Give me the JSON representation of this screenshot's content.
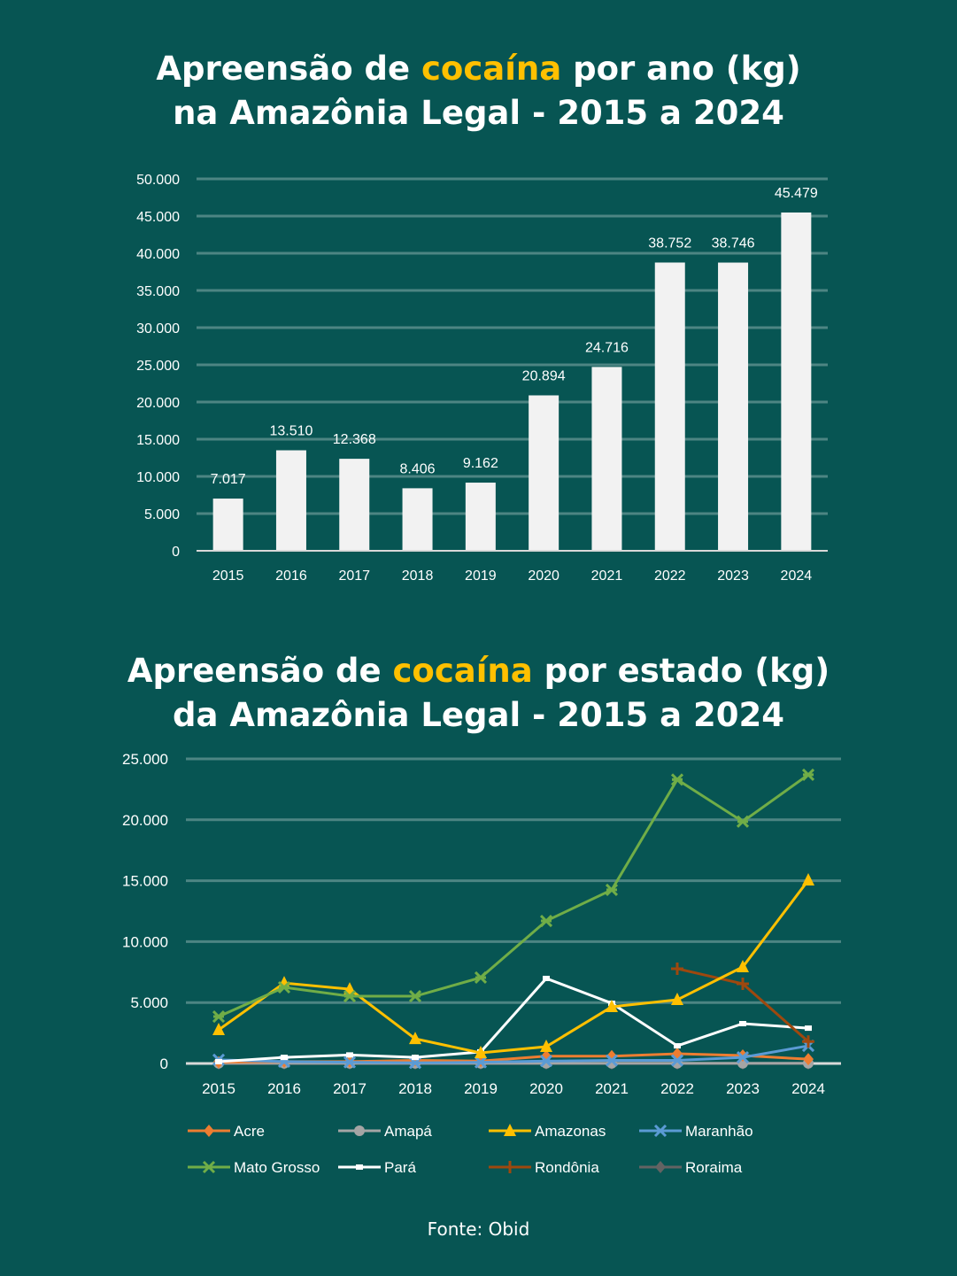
{
  "colors": {
    "background": "#075553",
    "highlight": "#ffc000",
    "bar": "#f2f2f2",
    "grid": "#4d8583"
  },
  "chart_data": [
    {
      "type": "bar",
      "title_parts": [
        "Apreensão de ",
        "cocaína",
        " por ano (kg)",
        "na Amazônia Legal - 2015 a 2024"
      ],
      "categories": [
        "2015",
        "2016",
        "2017",
        "2018",
        "2019",
        "2020",
        "2021",
        "2022",
        "2023",
        "2024"
      ],
      "values": [
        7017,
        13510,
        12368,
        8406,
        9162,
        20894,
        24716,
        38752,
        38746,
        45479
      ],
      "data_labels": [
        "7.017",
        "13.510",
        "12.368",
        "8.406",
        "9.162",
        "20.894",
        "24.716",
        "38.752",
        "38.746",
        "45.479"
      ],
      "yticks": [
        "0",
        "5.000",
        "10.000",
        "15.000",
        "20.000",
        "25.000",
        "30.000",
        "35.000",
        "40.000",
        "45.000",
        "50.000"
      ],
      "ylim": [
        0,
        50000
      ],
      "grid": true
    },
    {
      "type": "line",
      "title_parts": [
        "Apreensão de ",
        "cocaína",
        " por estado (kg)",
        "da Amazônia Legal - 2015 a 2024"
      ],
      "categories": [
        "2015",
        "2016",
        "2017",
        "2018",
        "2019",
        "2020",
        "2021",
        "2022",
        "2023",
        "2024"
      ],
      "yticks": [
        "0",
        "5.000",
        "10.000",
        "15.000",
        "20.000",
        "25.000"
      ],
      "ylim": [
        0,
        25000
      ],
      "grid": true,
      "legend_position": "bottom",
      "series": [
        {
          "name": "Acre",
          "color": "#ed7d31",
          "marker": "diamond",
          "values": [
            100,
            150,
            150,
            250,
            200,
            600,
            600,
            800,
            650,
            350
          ]
        },
        {
          "name": "Amapá",
          "color": "#a5a5a5",
          "marker": "circle",
          "values": [
            20,
            20,
            20,
            20,
            20,
            20,
            20,
            20,
            20,
            20
          ]
        },
        {
          "name": "Amazonas",
          "color": "#ffc000",
          "marker": "triangle",
          "values": [
            2760,
            6600,
            6100,
            2030,
            870,
            1380,
            4650,
            5230,
            7920,
            15040
          ]
        },
        {
          "name": "Maranhão",
          "color": "#5b9bd5",
          "marker": "x",
          "values": [
            300,
            150,
            100,
            50,
            100,
            200,
            250,
            250,
            500,
            1450
          ]
        },
        {
          "name": "Mato Grosso",
          "color": "#70ad47",
          "marker": "star",
          "values": [
            3850,
            6250,
            5520,
            5520,
            7050,
            11700,
            14250,
            23300,
            19850,
            23700
          ]
        },
        {
          "name": "Pará",
          "color": "#ffffff",
          "marker": "square",
          "values": [
            150,
            500,
            700,
            500,
            950,
            6980,
            4940,
            1450,
            3270,
            2900
          ]
        },
        {
          "name": "Rondônia",
          "color": "#9e480e",
          "marker": "plus",
          "values": [
            null,
            null,
            null,
            null,
            null,
            null,
            null,
            7780,
            6540,
            1800
          ]
        },
        {
          "name": "Roraima",
          "color": "#636363",
          "marker": "diamond",
          "values": [
            0,
            0,
            0,
            0,
            0,
            0,
            0,
            0,
            0,
            0
          ]
        }
      ]
    }
  ],
  "source": "Fonte: Obid"
}
